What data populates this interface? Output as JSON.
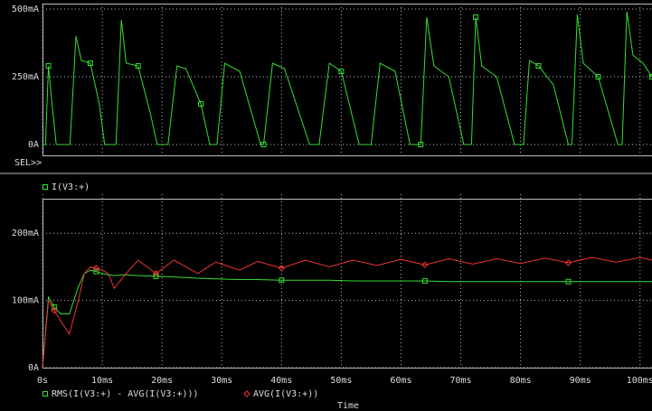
{
  "chart_data": [
    {
      "type": "line",
      "side_label": "SEL>>",
      "xlim": [
        0,
        102
      ],
      "ylim": [
        -40,
        500
      ],
      "yticks": [
        {
          "value": 0,
          "label": "0A"
        },
        {
          "value": 250,
          "label": "250mA"
        },
        {
          "value": 500,
          "label": "500mA"
        }
      ],
      "grid": true,
      "x": [
        0,
        0.5,
        1.0,
        1.5,
        2.3,
        4.6,
        5.6,
        6.5,
        8,
        9.5,
        10.4,
        12.3,
        13.2,
        14,
        16,
        18,
        19.2,
        21,
        22.5,
        24,
        26.5,
        28,
        29.2,
        30.5,
        33,
        36.5,
        37,
        38.5,
        40.5,
        44.7,
        46.3,
        48,
        50,
        53,
        55,
        56.5,
        59,
        61.5,
        63.3,
        64.3,
        65.5,
        68,
        70.5,
        71.8,
        72.5,
        73.5,
        76,
        79,
        80.5,
        81.5,
        83,
        85.5,
        88,
        88.6,
        89.5,
        90.5,
        93,
        96.3,
        97,
        97.8,
        98.8,
        100.5,
        102
      ],
      "series": [
        {
          "name": "I(V3:+)",
          "color": "#33dd33",
          "marker": "square",
          "values": [
            0,
            0,
            290,
            170,
            0,
            0,
            400,
            310,
            300,
            150,
            0,
            0,
            460,
            300,
            290,
            120,
            0,
            0,
            290,
            280,
            150,
            0,
            0,
            300,
            270,
            0,
            0,
            300,
            280,
            0,
            0,
            300,
            270,
            0,
            0,
            300,
            270,
            0,
            0,
            470,
            290,
            250,
            0,
            0,
            470,
            290,
            250,
            0,
            0,
            310,
            290,
            220,
            0,
            0,
            480,
            300,
            250,
            0,
            0,
            490,
            330,
            300,
            250
          ]
        }
      ]
    },
    {
      "type": "line",
      "xlabel": "Time",
      "xlim": [
        0,
        102
      ],
      "ylim": [
        0,
        250
      ],
      "xticks": [
        {
          "value": 0,
          "label": "0s"
        },
        {
          "value": 10,
          "label": "10ms"
        },
        {
          "value": 20,
          "label": "20ms"
        },
        {
          "value": 30,
          "label": "30ms"
        },
        {
          "value": 40,
          "label": "40ms"
        },
        {
          "value": 50,
          "label": "50ms"
        },
        {
          "value": 60,
          "label": "60ms"
        },
        {
          "value": 70,
          "label": "70ms"
        },
        {
          "value": 80,
          "label": "80ms"
        },
        {
          "value": 90,
          "label": "90ms"
        },
        {
          "value": 100,
          "label": "100ms"
        }
      ],
      "yticks": [
        {
          "value": 0,
          "label": "0A"
        },
        {
          "value": 100,
          "label": "100mA"
        },
        {
          "value": 200,
          "label": "200mA"
        }
      ],
      "grid": true,
      "x": [
        0,
        1,
        2,
        3,
        4.5,
        6,
        7,
        8,
        9,
        10,
        11,
        12,
        14,
        16,
        19,
        22,
        26,
        29,
        33,
        36,
        40,
        44,
        48,
        52,
        56,
        60,
        64,
        68,
        72,
        76,
        80,
        84,
        88,
        92,
        96,
        100,
        102
      ],
      "series": [
        {
          "name": "RMS(I(V3:+) -  AVG(I(V3:+)))",
          "color": "#33dd33",
          "marker": "square",
          "values": [
            0,
            105,
            90,
            80,
            80,
            120,
            140,
            145,
            143,
            140,
            138,
            137,
            138,
            137,
            136,
            135,
            133,
            132,
            131,
            131,
            130,
            130,
            130,
            129,
            129,
            129,
            129,
            128,
            128,
            128,
            128,
            128,
            128,
            128,
            128,
            128,
            128
          ]
        },
        {
          "name": "AVG(I(V3:+))",
          "color": "#ee3333",
          "marker": "diamond",
          "values": [
            0,
            100,
            85,
            70,
            50,
            100,
            140,
            150,
            148,
            145,
            140,
            118,
            140,
            160,
            140,
            160,
            140,
            157,
            145,
            158,
            148,
            160,
            150,
            160,
            152,
            161,
            153,
            162,
            154,
            162,
            155,
            163,
            156,
            164,
            157,
            164,
            160
          ]
        }
      ]
    }
  ]
}
